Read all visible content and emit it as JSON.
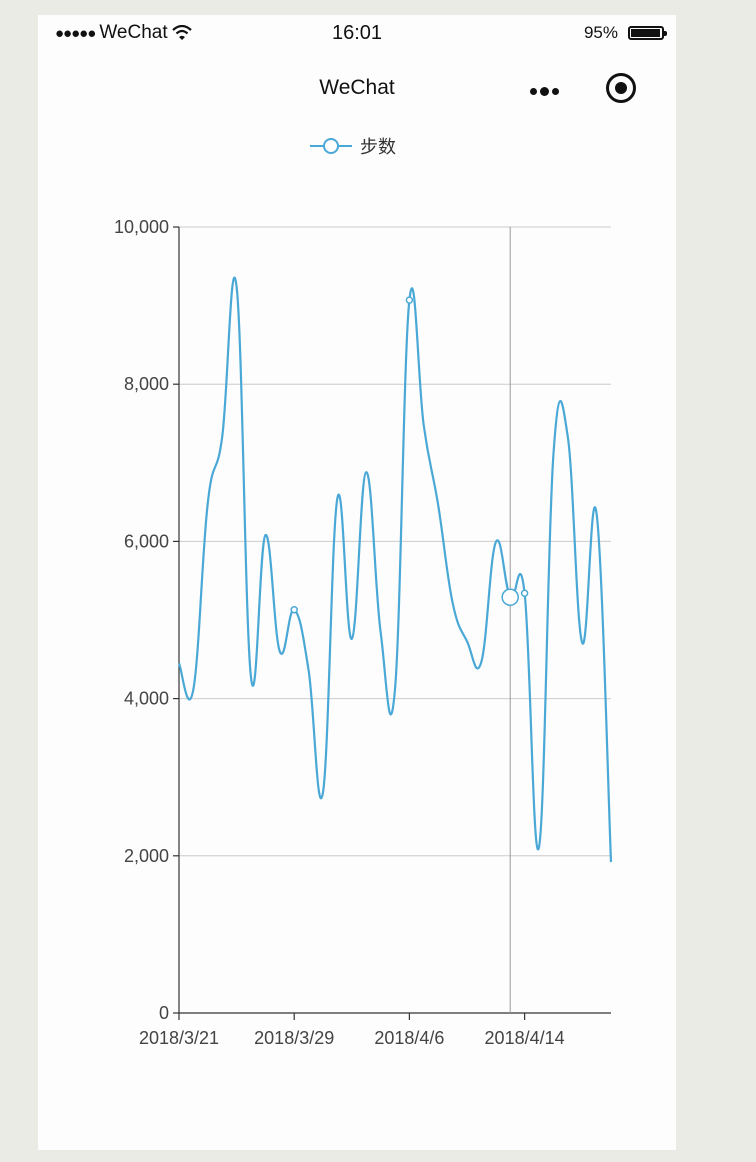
{
  "status_bar": {
    "carrier": "WeChat",
    "signal_dots": "●●●●●",
    "time": "16:01",
    "battery": "95%",
    "battery_level": 0.95,
    "wifi_icon": "wifi-icon"
  },
  "nav": {
    "title": "WeChat",
    "more_icon": "more-dots-icon",
    "close_icon": "target-icon"
  },
  "chart_data": {
    "type": "line",
    "smooth": true,
    "legend": {
      "entries": [
        "步数"
      ],
      "placement": "top-center"
    },
    "series": [
      {
        "name": "步数",
        "color": "#4aa8d6",
        "values": [
          4450,
          4120,
          6490,
          7330,
          9240,
          4270,
          6080,
          4600,
          5130,
          4360,
          2810,
          6550,
          4760,
          6880,
          4850,
          4120,
          9070,
          7470,
          6460,
          5220,
          4730,
          4470,
          5990,
          5290,
          5340,
          2110,
          7100,
          7330,
          4710,
          6350,
          1920
        ]
      }
    ],
    "x": [
      "2018/3/21",
      "2018/3/22",
      "2018/3/23",
      "2018/3/24",
      "2018/3/25",
      "2018/3/26",
      "2018/3/27",
      "2018/3/28",
      "2018/3/29",
      "2018/3/30",
      "2018/3/31",
      "2018/4/1",
      "2018/4/2",
      "2018/4/3",
      "2018/4/4",
      "2018/4/5",
      "2018/4/6",
      "2018/4/7",
      "2018/4/8",
      "2018/4/9",
      "2018/4/10",
      "2018/4/11",
      "2018/4/12",
      "2018/4/13",
      "2018/4/14",
      "2018/4/15",
      "2018/4/16",
      "2018/4/17",
      "2018/4/18",
      "2018/4/19",
      "2018/4/20"
    ],
    "x_tick_labels": [
      "2018/3/21",
      "2018/3/29",
      "2018/4/6",
      "2018/4/14"
    ],
    "y_tick_labels": [
      "0",
      "2,000",
      "4,000",
      "6,000",
      "8,000",
      "10,000"
    ],
    "ylim": [
      0,
      10000
    ],
    "grid": true,
    "hover": {
      "date": "2018/4/13"
    }
  }
}
